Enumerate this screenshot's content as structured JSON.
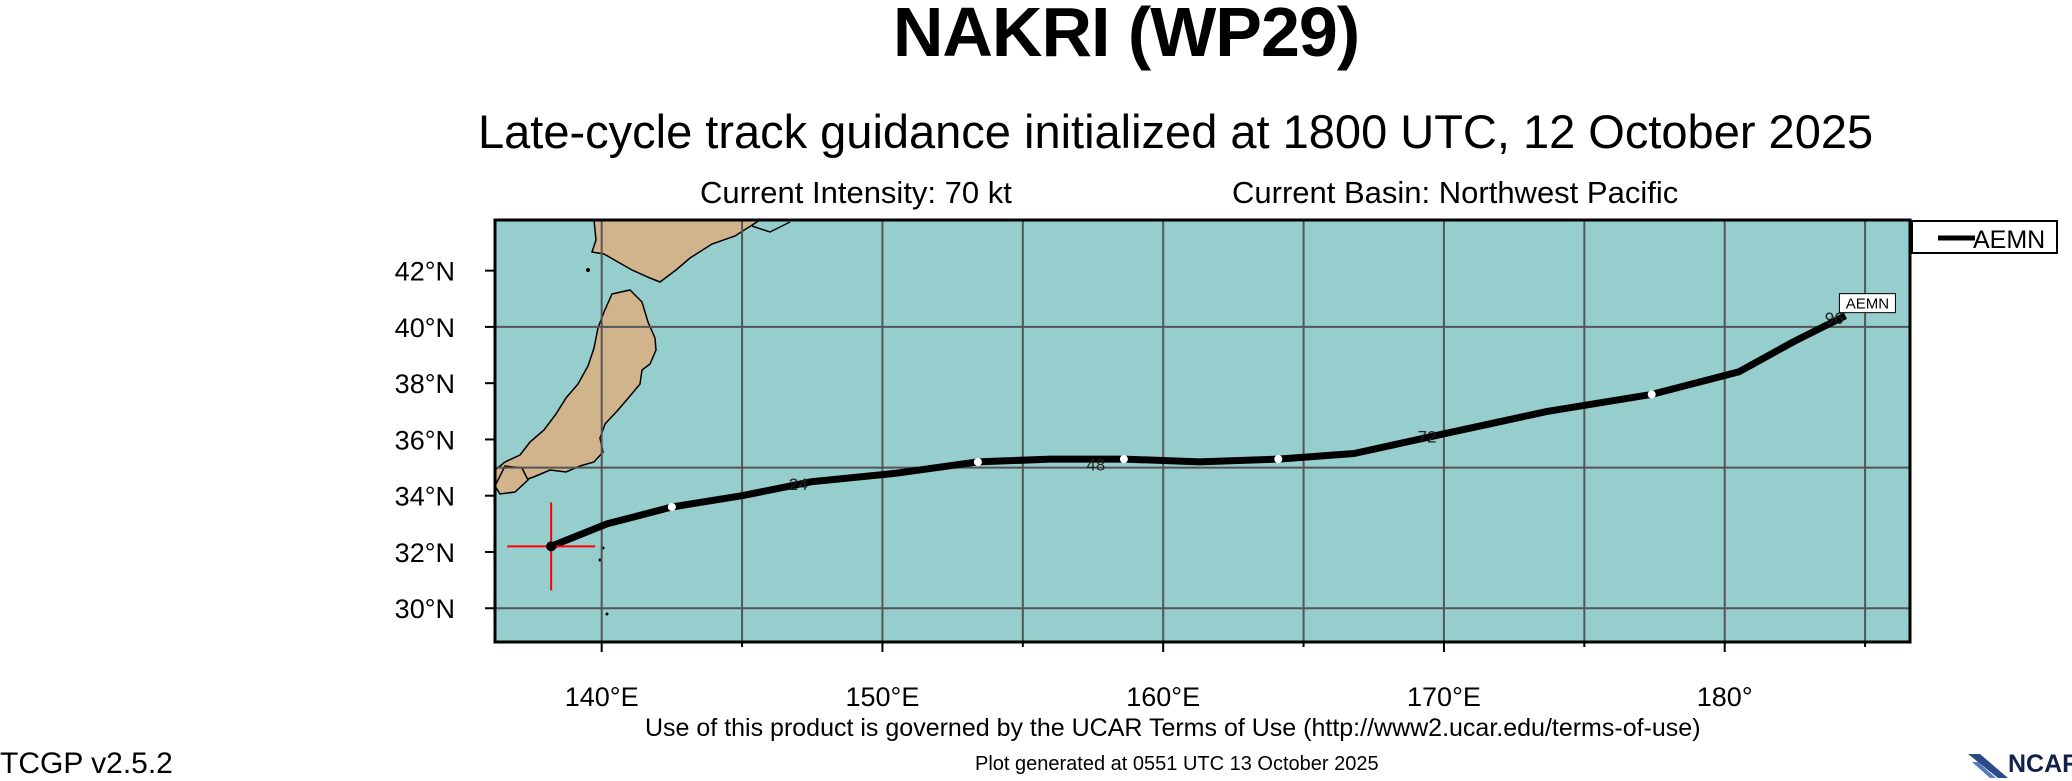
{
  "header": {
    "title": "NAKRI (WP29)",
    "subtitle": "Late-cycle track guidance initialized at 1800 UTC, 12 October 2025",
    "intensity": "Current Intensity: 70 kt",
    "basin": "Current Basin: Northwest Pacific"
  },
  "footer": {
    "terms": "Use of this product is governed by the UCAR Terms of Use (http://www2.ucar.edu/terms-of-use)",
    "generated": "Plot generated at 0551 UTC    13 October 2025",
    "version": "TCGP v2.5.2",
    "logo_text": "NCAR"
  },
  "map": {
    "lon_range": [
      136.2,
      186.6
    ],
    "lat_range": [
      28.8,
      43.8
    ],
    "lon_ticks": [
      140,
      150,
      160,
      170,
      180
    ],
    "lon_tick_labels": [
      "140°E",
      "150°E",
      "160°E",
      "170°E",
      "180°"
    ],
    "lat_ticks": [
      30,
      32,
      34,
      36,
      38,
      40,
      42
    ],
    "lat_tick_labels": [
      "30°N",
      "32°N",
      "34°N",
      "36°N",
      "38°N",
      "40°N",
      "42°N"
    ],
    "colors": {
      "ocean": "#96cdcd",
      "land": "#d2b48c",
      "track": "#000000",
      "grid": "#555555",
      "marker": "#ff0000"
    }
  },
  "legend": {
    "entries": [
      "AEMN"
    ]
  },
  "track": {
    "name": "AEMN",
    "initial_position": {
      "lon": 138.2,
      "lat": 32.2
    },
    "points": [
      {
        "lon": 138.2,
        "lat": 32.2
      },
      {
        "lon": 140.2,
        "lat": 33.0
      },
      {
        "lon": 142.5,
        "lat": 33.6
      },
      {
        "lon": 145.0,
        "lat": 34.0
      },
      {
        "lon": 147.5,
        "lat": 34.5
      },
      {
        "lon": 150.5,
        "lat": 34.8
      },
      {
        "lon": 153.4,
        "lat": 35.2
      },
      {
        "lon": 156.0,
        "lat": 35.3
      },
      {
        "lon": 158.6,
        "lat": 35.3
      },
      {
        "lon": 161.3,
        "lat": 35.2
      },
      {
        "lon": 164.1,
        "lat": 35.3
      },
      {
        "lon": 166.8,
        "lat": 35.5
      },
      {
        "lon": 170.0,
        "lat": 36.2
      },
      {
        "lon": 173.7,
        "lat": 37.0
      },
      {
        "lon": 177.4,
        "lat": 37.6
      },
      {
        "lon": 180.5,
        "lat": 38.4
      },
      {
        "lon": 182.5,
        "lat": 39.5
      },
      {
        "lon": 184.3,
        "lat": 40.4
      }
    ],
    "hour_labels": [
      {
        "text": "24",
        "lon": 147.0,
        "lat": 34.2
      },
      {
        "text": "48",
        "lon": 157.6,
        "lat": 34.9
      },
      {
        "text": "72",
        "lon": 169.4,
        "lat": 35.9
      },
      {
        "text": "96",
        "lon": 183.9,
        "lat": 40.1
      }
    ],
    "end_label": "AEMN"
  }
}
